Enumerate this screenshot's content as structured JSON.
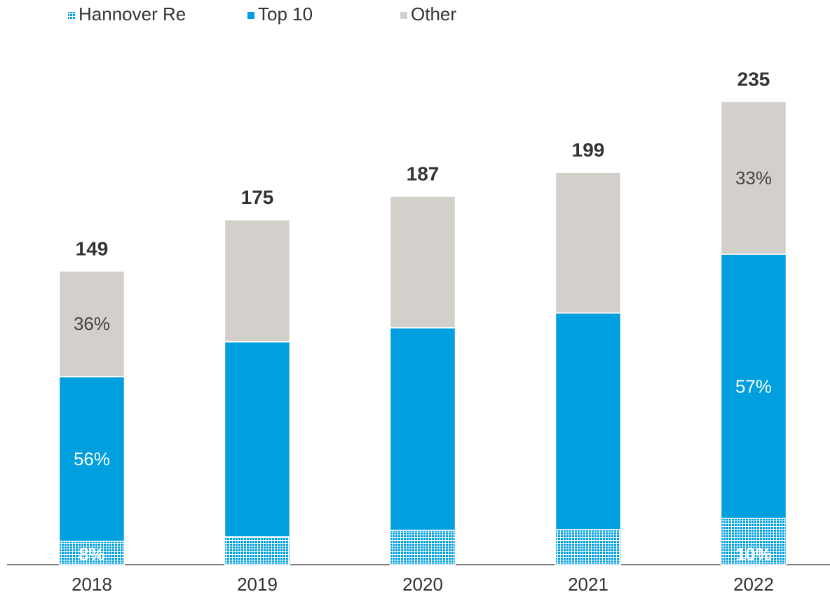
{
  "chart_data": {
    "type": "stacked_bar",
    "categories": [
      "2018",
      "2019",
      "2020",
      "2021",
      "2022"
    ],
    "totals": [
      149,
      175,
      187,
      199,
      235
    ],
    "series": [
      {
        "name": "Hannover Re",
        "color": "#009fe0",
        "pattern": "dotted",
        "values": [
          11.9,
          14.2,
          17.4,
          17.8,
          23.5
        ],
        "value_labels": [
          "8%",
          null,
          null,
          null,
          "10%"
        ]
      },
      {
        "name": "Top 10",
        "color": "#009fe0",
        "values": [
          83.5,
          98.9,
          102.8,
          109.9,
          134
        ],
        "value_labels": [
          "56%",
          null,
          null,
          null,
          "57%"
        ]
      },
      {
        "name": "Other",
        "color": "#d3d0cb",
        "values": [
          53.6,
          61.9,
          66.8,
          71.3,
          77.5
        ],
        "value_labels": [
          "36%",
          null,
          null,
          null,
          "33%"
        ]
      }
    ],
    "legend": "top-left"
  }
}
